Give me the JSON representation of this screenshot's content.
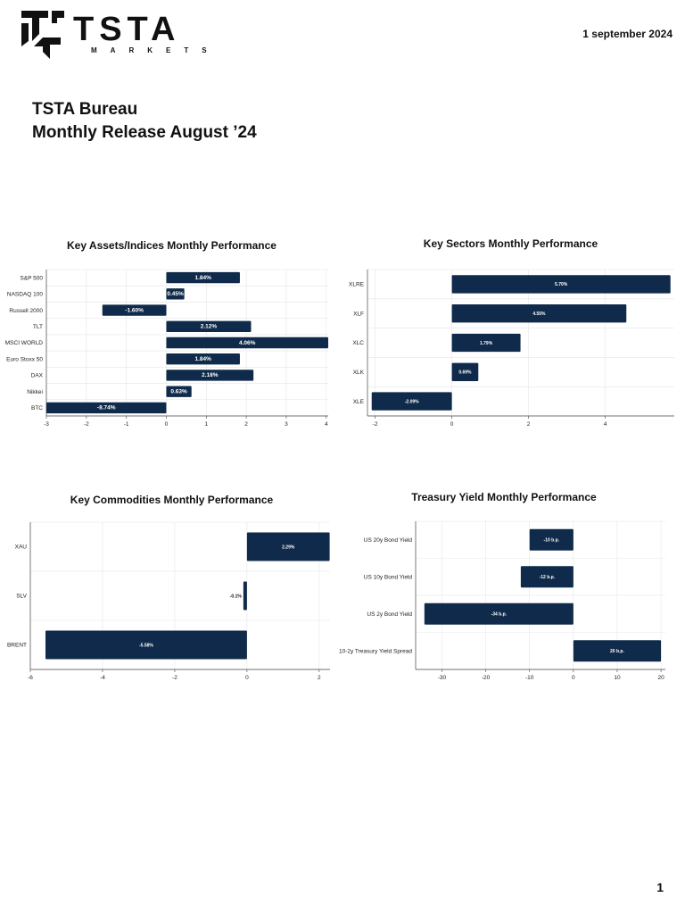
{
  "header": {
    "logo_text": "TSTA",
    "logo_subtext": "MARKETS",
    "date": "1 september 2024"
  },
  "report": {
    "title_line1": "TSTA Bureau",
    "title_line2": "Monthly Release August ’24"
  },
  "page_number": "1",
  "colors": {
    "bar": "#0f2a4a",
    "grid": "#e3e6ea",
    "axis": "#444444"
  },
  "chart_data": [
    {
      "type": "bar",
      "orientation": "horizontal",
      "title": "Key Assets/Indices Monthly Performance",
      "categories": [
        "S&P 500",
        "NASDAQ 100",
        "Russell 2000",
        "TLT",
        "MSCI WORLD",
        "Euro Stoxx 50",
        "DAX",
        "Nikkei",
        "BTC"
      ],
      "values": [
        1.84,
        0.45,
        -1.6,
        2.12,
        4.06,
        1.84,
        2.18,
        0.63,
        -8.74
      ],
      "data_labels": [
        "1.84%",
        "0.45%",
        "-1.60%",
        "2.12%",
        "4.06%",
        "1.84%",
        "2.18%",
        "0.63%",
        "-8.74%"
      ],
      "xlim": [
        -3,
        4.05
      ],
      "xticks": [
        "-3",
        "-2",
        "-1",
        "0",
        "1",
        "2",
        "3",
        "4"
      ],
      "grid": true
    },
    {
      "type": "bar",
      "orientation": "horizontal",
      "title": "Key Sectors Monthly Performance",
      "categories": [
        "XLRE",
        "XLF",
        "XLC",
        "XLK",
        "XLE"
      ],
      "values": [
        5.7,
        4.55,
        1.79,
        0.69,
        -2.09
      ],
      "data_labels": [
        "5.70%",
        "4.55%",
        "1.79%",
        "0.69%",
        "-2.09%"
      ],
      "xlim": [
        -2.2,
        5.8
      ],
      "xticks": [
        "-2",
        "0",
        "2",
        "4"
      ],
      "grid": true
    },
    {
      "type": "bar",
      "orientation": "horizontal",
      "title": "Key Commodities Monthly Performance",
      "categories": [
        "XAU",
        "SLV",
        "BRENT"
      ],
      "values": [
        2.29,
        -0.1,
        -5.58
      ],
      "data_labels": [
        "2.29%",
        "-0.1%",
        "-5.58%"
      ],
      "xlim": [
        -6,
        2.3
      ],
      "xticks": [
        "-6",
        "-4",
        "-2",
        "0",
        "2"
      ],
      "grid": true
    },
    {
      "type": "bar",
      "orientation": "horizontal",
      "title": "Treasury Yield Monthly Performance",
      "categories": [
        "US 20y Bond Yield",
        "US 10y Bond Yield",
        "US 2y Bond Yield",
        "10-2y Treasury Yield Spread"
      ],
      "values": [
        -10,
        -12,
        -34,
        20
      ],
      "data_labels": [
        "-10 b.p.",
        "-12 b.p.",
        "-34 b.p.",
        "20 b.p."
      ],
      "xlim": [
        -36,
        21
      ],
      "xticks": [
        "-30",
        "-20",
        "-10",
        "0",
        "10",
        "20"
      ],
      "grid": true
    }
  ]
}
